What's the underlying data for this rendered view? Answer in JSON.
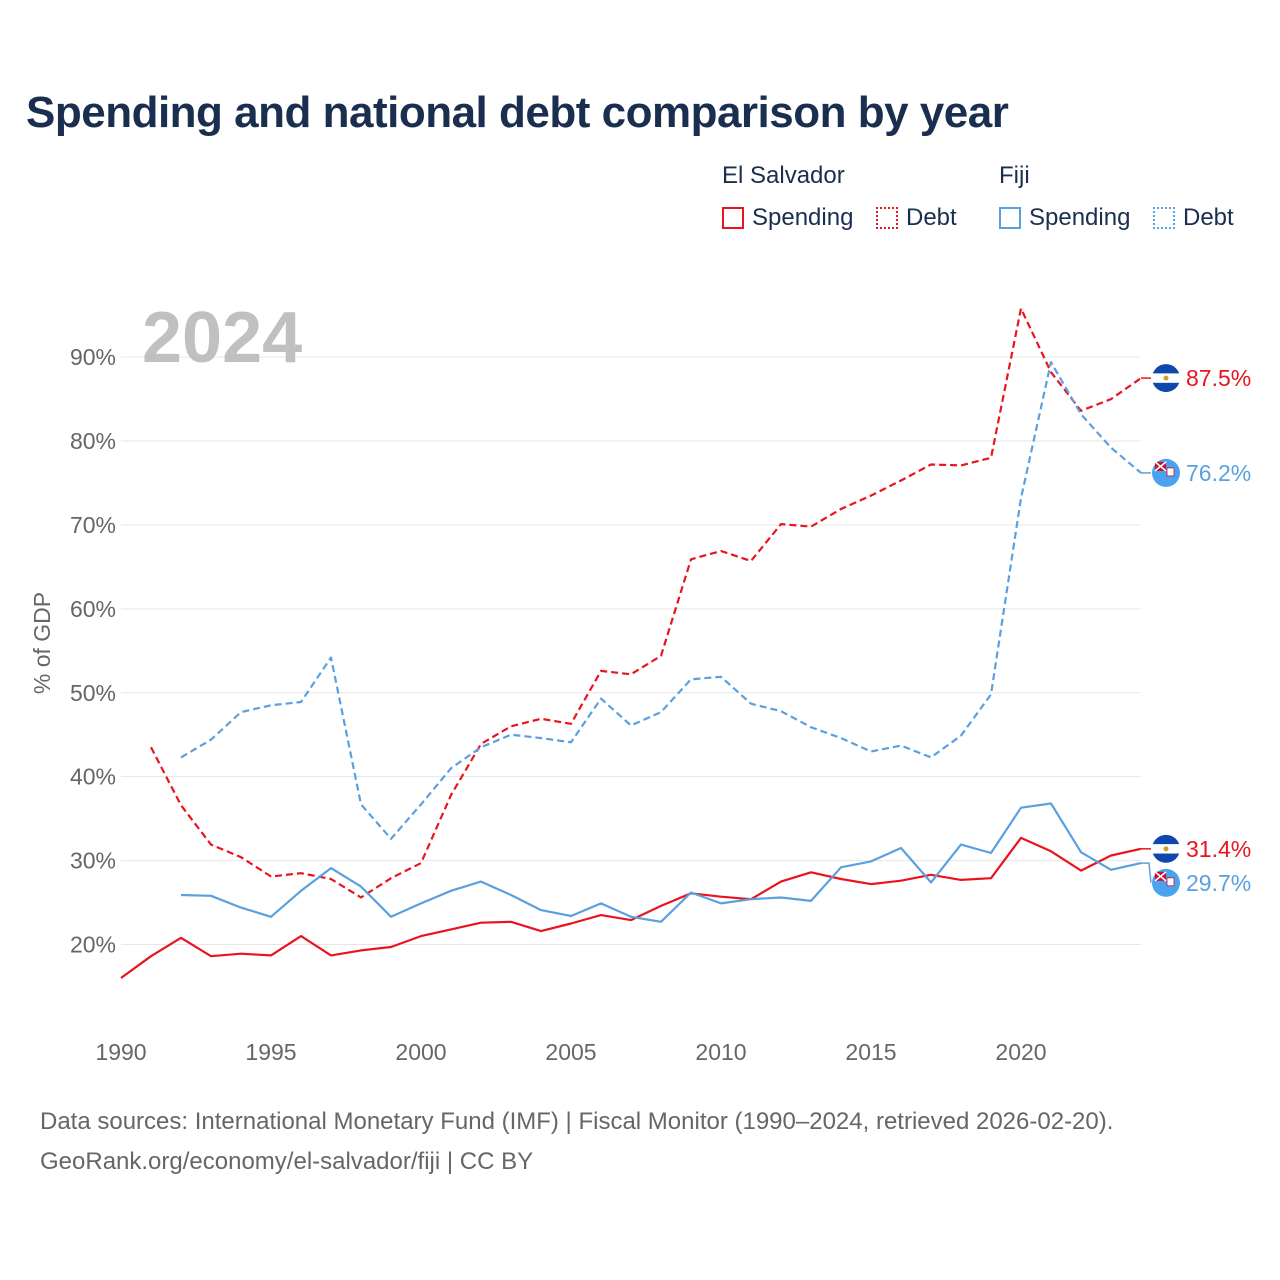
{
  "title": "Spending and national debt comparison by year",
  "legend": {
    "groups": [
      {
        "country": "El Salvador",
        "items": [
          {
            "label": "Spending",
            "style": "solid"
          },
          {
            "label": "Debt",
            "style": "dotted"
          }
        ]
      },
      {
        "country": "Fiji",
        "items": [
          {
            "label": "Spending",
            "style": "solid"
          },
          {
            "label": "Debt",
            "style": "dotted"
          }
        ]
      }
    ]
  },
  "colors": {
    "el_salvador": "#e8141e",
    "fiji": "#5aa0e0",
    "year_watermark": "#c0c0c0",
    "axis_text": "#666666"
  },
  "footer": {
    "line1": "Data sources: International Monetary Fund (IMF) | Fiscal Monitor (1990–2024, retrieved 2026-02-20).",
    "line2": "GeoRank.org/economy/el-salvador/fiji | CC BY"
  },
  "chart_data": {
    "type": "line",
    "title": "Spending and national debt comparison by year",
    "year_label": "2024",
    "xlabel": "",
    "ylabel": "% of GDP",
    "xlim": [
      1990,
      2024
    ],
    "ylim": [
      11,
      98
    ],
    "x_ticks": [
      1990,
      1995,
      2000,
      2005,
      2010,
      2015,
      2020
    ],
    "y_ticks": [
      20,
      30,
      40,
      50,
      60,
      70,
      80,
      90
    ],
    "y_tick_labels": [
      "20%",
      "30%",
      "40%",
      "50%",
      "60%",
      "70%",
      "80%",
      "90%"
    ],
    "series": [
      {
        "name": "El Salvador Spending",
        "country": "el_salvador",
        "style": "solid",
        "x": [
          1990,
          1991,
          1992,
          1993,
          1994,
          1995,
          1996,
          1997,
          1998,
          1999,
          2000,
          2001,
          2002,
          2003,
          2004,
          2005,
          2006,
          2007,
          2008,
          2009,
          2010,
          2011,
          2012,
          2013,
          2014,
          2015,
          2016,
          2017,
          2018,
          2019,
          2020,
          2021,
          2022,
          2023,
          2024
        ],
        "values": [
          16.0,
          18.6,
          20.8,
          18.6,
          18.9,
          18.7,
          21.0,
          18.7,
          19.3,
          19.7,
          21.0,
          21.8,
          22.6,
          22.7,
          21.6,
          22.5,
          23.5,
          22.9,
          24.6,
          26.1,
          25.7,
          25.4,
          27.5,
          28.6,
          27.8,
          27.2,
          27.6,
          28.3,
          27.7,
          27.9,
          32.7,
          31.1,
          28.8,
          30.6,
          31.4
        ],
        "end_label": "31.4%"
      },
      {
        "name": "El Salvador Debt",
        "country": "el_salvador",
        "style": "dashed",
        "x": [
          1991,
          1992,
          1993,
          1994,
          1995,
          1996,
          1997,
          1998,
          1999,
          2000,
          2001,
          2002,
          2003,
          2004,
          2005,
          2006,
          2007,
          2008,
          2009,
          2010,
          2011,
          2012,
          2013,
          2014,
          2015,
          2016,
          2017,
          2018,
          2019,
          2020,
          2021,
          2022,
          2023,
          2024
        ],
        "values": [
          43.5,
          36.6,
          31.9,
          30.4,
          28.1,
          28.5,
          27.8,
          25.6,
          27.9,
          29.7,
          37.8,
          43.9,
          46.0,
          46.9,
          46.3,
          52.6,
          52.2,
          54.4,
          65.9,
          66.9,
          65.7,
          70.1,
          69.8,
          71.9,
          73.5,
          75.3,
          77.2,
          77.1,
          78.0,
          95.8,
          88.2,
          83.6,
          85.0,
          87.5
        ],
        "end_label": "87.5%"
      },
      {
        "name": "Fiji Spending",
        "country": "fiji",
        "style": "solid",
        "x": [
          1992,
          1993,
          1994,
          1995,
          1996,
          1997,
          1998,
          1999,
          2000,
          2001,
          2002,
          2003,
          2004,
          2005,
          2006,
          2007,
          2008,
          2009,
          2010,
          2011,
          2012,
          2013,
          2014,
          2015,
          2016,
          2017,
          2018,
          2019,
          2020,
          2021,
          2022,
          2023,
          2024
        ],
        "values": [
          25.9,
          25.8,
          24.4,
          23.3,
          26.4,
          29.1,
          26.9,
          23.3,
          24.9,
          26.4,
          27.5,
          25.9,
          24.1,
          23.4,
          24.9,
          23.3,
          22.7,
          26.2,
          24.9,
          25.4,
          25.6,
          25.2,
          29.2,
          29.9,
          31.5,
          27.4,
          31.9,
          30.9,
          36.3,
          36.8,
          31.0,
          28.9,
          29.7
        ],
        "end_label": "29.7%"
      },
      {
        "name": "Fiji Debt",
        "country": "fiji",
        "style": "dashed",
        "x": [
          1992,
          1993,
          1994,
          1995,
          1996,
          1997,
          1998,
          1999,
          2000,
          2001,
          2002,
          2003,
          2004,
          2005,
          2006,
          2007,
          2008,
          2009,
          2010,
          2011,
          2012,
          2013,
          2014,
          2015,
          2016,
          2017,
          2018,
          2019,
          2020,
          2021,
          2022,
          2023,
          2024
        ],
        "values": [
          42.3,
          44.4,
          47.7,
          48.5,
          48.9,
          54.2,
          36.7,
          32.6,
          36.7,
          41.0,
          43.5,
          45.0,
          44.6,
          44.1,
          49.3,
          46.1,
          47.7,
          51.6,
          51.9,
          48.7,
          47.8,
          45.9,
          44.6,
          43.0,
          43.7,
          42.3,
          44.9,
          49.8,
          73.2,
          89.4,
          83.2,
          79.2,
          76.2
        ],
        "end_label": "76.2%"
      }
    ]
  }
}
